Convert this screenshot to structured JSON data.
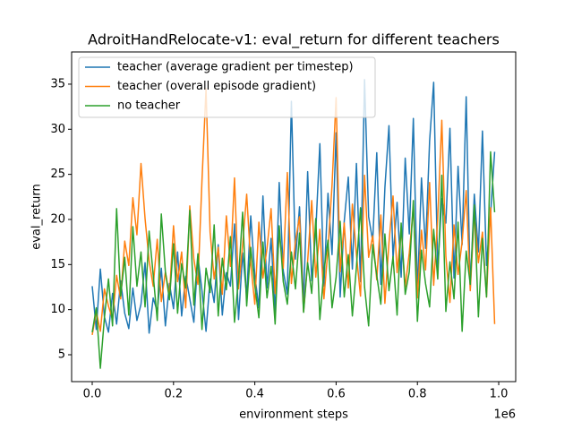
{
  "chart_data": {
    "type": "line",
    "title": "AdroitHandRelocate-v1: eval_return for different teachers",
    "x_label": "environment steps",
    "y_label": "eval_return",
    "x_offset_label": "1e6",
    "xlim": [
      -50660,
      1041800
    ],
    "ylim": [
      2.02,
      38.57
    ],
    "xticks": [
      {
        "value": 0,
        "label": "0.0"
      },
      {
        "value": 200000,
        "label": "0.2"
      },
      {
        "value": 400000,
        "label": "0.4"
      },
      {
        "value": 600000,
        "label": "0.6"
      },
      {
        "value": 800000,
        "label": "0.8"
      },
      {
        "value": 1000000,
        "label": "1.0"
      }
    ],
    "yticks": [
      5,
      10,
      15,
      20,
      25,
      30,
      35
    ],
    "legend": "upper left",
    "x": [
      0,
      10000,
      20000,
      30000,
      40000,
      50000,
      60000,
      70000,
      80000,
      90000,
      100000,
      110000,
      120000,
      130000,
      140000,
      150000,
      160000,
      170000,
      180000,
      190000,
      200000,
      210000,
      220000,
      230000,
      240000,
      250000,
      260000,
      270000,
      280000,
      290000,
      300000,
      310000,
      320000,
      330000,
      340000,
      350000,
      360000,
      370000,
      380000,
      390000,
      400000,
      410000,
      420000,
      430000,
      440000,
      450000,
      460000,
      470000,
      480000,
      490000,
      500000,
      510000,
      520000,
      530000,
      540000,
      550000,
      560000,
      570000,
      580000,
      590000,
      600000,
      610000,
      620000,
      630000,
      640000,
      650000,
      660000,
      670000,
      680000,
      690000,
      700000,
      710000,
      720000,
      730000,
      740000,
      750000,
      760000,
      770000,
      780000,
      790000,
      800000,
      810000,
      820000,
      830000,
      840000,
      850000,
      860000,
      870000,
      880000,
      890000,
      900000,
      910000,
      920000,
      930000,
      940000,
      950000,
      960000,
      970000,
      980000,
      990000
    ],
    "series": [
      {
        "name": "teacher (average gradient per timestep)",
        "color": "#1f77b4",
        "values": [
          12.6,
          7.8,
          14.5,
          9.2,
          7.5,
          11.8,
          8.4,
          13.2,
          9.6,
          7.9,
          12.4,
          8.8,
          10.6,
          15.2,
          7.4,
          11.3,
          9.8,
          14.6,
          8.2,
          12.9,
          10.1,
          16.4,
          9.3,
          13.7,
          11.2,
          8.6,
          15.9,
          12.1,
          7.6,
          13.4,
          10.8,
          17.2,
          9.4,
          14.1,
          12.6,
          19.5,
          8.9,
          16.3,
          11.5,
          20.4,
          13.8,
          10.2,
          22.6,
          12.4,
          17.9,
          9.6,
          24.1,
          14.3,
          11.7,
          33.1,
          15.6,
          21.4,
          10.9,
          25.3,
          13.2,
          18.7,
          28.4,
          12.6,
          22.9,
          16.1,
          29.6,
          11.4,
          19.8,
          24.7,
          14.5,
          26.2,
          13.1,
          35.5,
          20.3,
          17.6,
          27.4,
          12.8,
          23.5,
          30.4,
          15.7,
          21.9,
          13.6,
          26.8,
          18.4,
          31.2,
          11.9,
          24.6,
          16.8,
          28.7,
          35.2,
          14.4,
          22.3,
          19.6,
          30.1,
          13.5,
          25.9,
          17.2,
          33.6,
          12.3,
          22.8,
          16.4,
          29.8,
          14.9,
          20.6,
          27.5
        ]
      },
      {
        "name": "teacher (overall episode gradient)",
        "color": "#ff7f0e",
        "values": [
          7.2,
          9.8,
          7.6,
          12.3,
          10.4,
          8.9,
          13.8,
          11.2,
          17.6,
          14.9,
          22.4,
          18.3,
          26.2,
          20.1,
          15.4,
          12.6,
          17.8,
          10.9,
          14.2,
          11.6,
          19.3,
          13.1,
          16.4,
          10.2,
          21.5,
          15.6,
          12.8,
          24.3,
          34.5,
          18.6,
          13.4,
          16.9,
          11.7,
          20.4,
          14.8,
          24.6,
          12.3,
          17.2,
          22.8,
          15.1,
          10.6,
          19.7,
          13.5,
          16.8,
          21.2,
          11.8,
          18.4,
          14.6,
          25.2,
          12.9,
          17.6,
          20.3,
          9.8,
          15.4,
          22.1,
          13.6,
          18.9,
          11.2,
          16.7,
          23.8,
          33.5,
          14.2,
          19.6,
          12.4,
          21.7,
          16.1,
          11.5,
          24.9,
          15.8,
          18.2,
          13.3,
          20.5,
          10.7,
          17.4,
          22.6,
          14.1,
          19.1,
          12.5,
          16.3,
          21.4,
          11.3,
          18.8,
          14.4,
          24.1,
          12.7,
          20.2,
          31.0,
          15.9,
          10.8,
          19.4,
          13.9,
          17.5,
          23.2,
          12.1,
          20.7,
          15.2,
          18.6,
          11.4,
          21.3,
          8.4
        ]
      },
      {
        "name": "no teacher",
        "color": "#2ca02c",
        "values": [
          7.5,
          10.2,
          3.5,
          9.1,
          13.4,
          8.2,
          21.2,
          11.5,
          15.8,
          9.4,
          19.2,
          12.6,
          16.4,
          10.3,
          18.7,
          13.9,
          8.8,
          20.6,
          14.2,
          11.1,
          17.3,
          9.6,
          15.1,
          12.4,
          21.0,
          10.5,
          16.2,
          7.8,
          14.6,
          11.9,
          19.4,
          9.3,
          15.7,
          12.2,
          18.1,
          8.6,
          13.5,
          20.8,
          10.4,
          16.9,
          12.7,
          9.1,
          17.5,
          11.3,
          14.8,
          8.4,
          19.3,
          13.1,
          10.6,
          16.4,
          12.3,
          18.5,
          9.7,
          15.2,
          11.8,
          20.1,
          8.9,
          14.3,
          17.7,
          10.2,
          13.6,
          19.8,
          11.4,
          16.1,
          9.3,
          14.7,
          21.3,
          12.5,
          8.2,
          17.2,
          13.8,
          10.6,
          18.4,
          12.1,
          15.9,
          9.4,
          19.6,
          11.7,
          14.2,
          22.1,
          8.7,
          16.6,
          12.9,
          10.3,
          18.9,
          13.4,
          24.9,
          9.8,
          15.3,
          11.2,
          19.7,
          7.6,
          16.5,
          12.8,
          21.6,
          9.2,
          17.9,
          11.4,
          27.5,
          20.8
        ]
      }
    ]
  }
}
